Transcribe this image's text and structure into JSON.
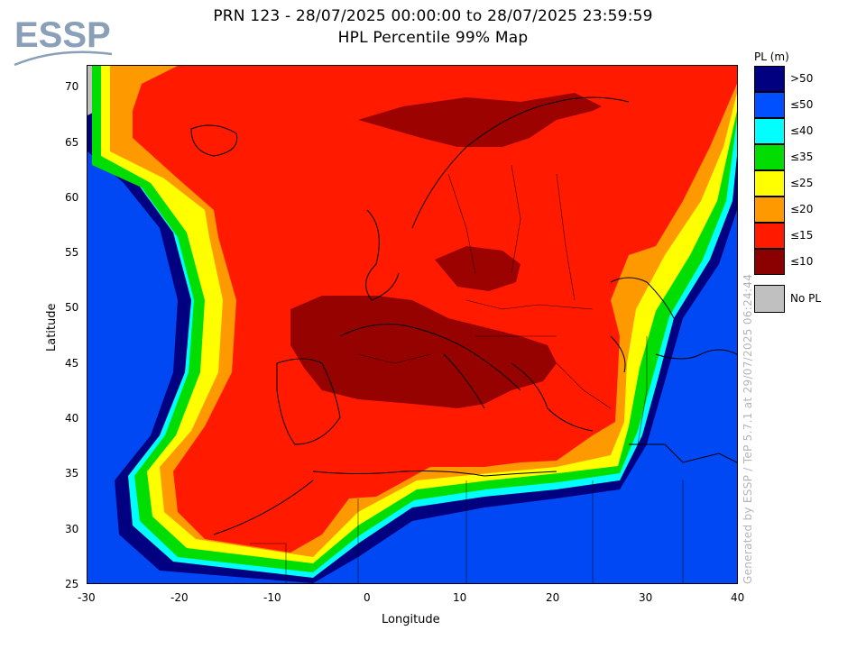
{
  "header": {
    "logo_text": "ESSP",
    "title_line1": "PRN 123 - 28/07/2025 00:00:00 to 28/07/2025 23:59:59",
    "title_line2": "HPL Percentile 99% Map"
  },
  "map": {
    "xlabel": "Longitude",
    "ylabel": "Latitude",
    "x_ticks": [
      "-30",
      "-20",
      "-10",
      "0",
      "10",
      "20",
      "30",
      "40"
    ],
    "y_ticks": [
      "70",
      "65",
      "60",
      "55",
      "50",
      "45",
      "40",
      "35",
      "30",
      "25"
    ],
    "x_range": [
      -30,
      40
    ],
    "y_range": [
      25,
      72
    ],
    "colors": {
      "ocean": "#000080",
      "red_zone": "#ff1a00",
      "dark_zone": "#8b0000",
      "no_pl": "#c0c0c0"
    }
  },
  "legend": {
    "title": "PL (m)",
    "items": [
      {
        "label": ">50",
        "color": "#000080"
      },
      {
        "label": "≤50",
        "color": "#0050ff"
      },
      {
        "label": "≤40",
        "color": "#00ffff"
      },
      {
        "label": "≤35",
        "color": "#00dd00"
      },
      {
        "label": "≤25",
        "color": "#ffff00"
      },
      {
        "label": "≤20",
        "color": "#ff9900"
      },
      {
        "label": "≤15",
        "color": "#ff1a00"
      },
      {
        "label": "≤10",
        "color": "#8b0000"
      }
    ],
    "no_pl": {
      "label": "No PL",
      "color": "#c0c0c0"
    }
  },
  "footer": {
    "generated_by": "Generated by ESSP / TeP 5.7.1 at 29/07/2025 06:24:44"
  }
}
